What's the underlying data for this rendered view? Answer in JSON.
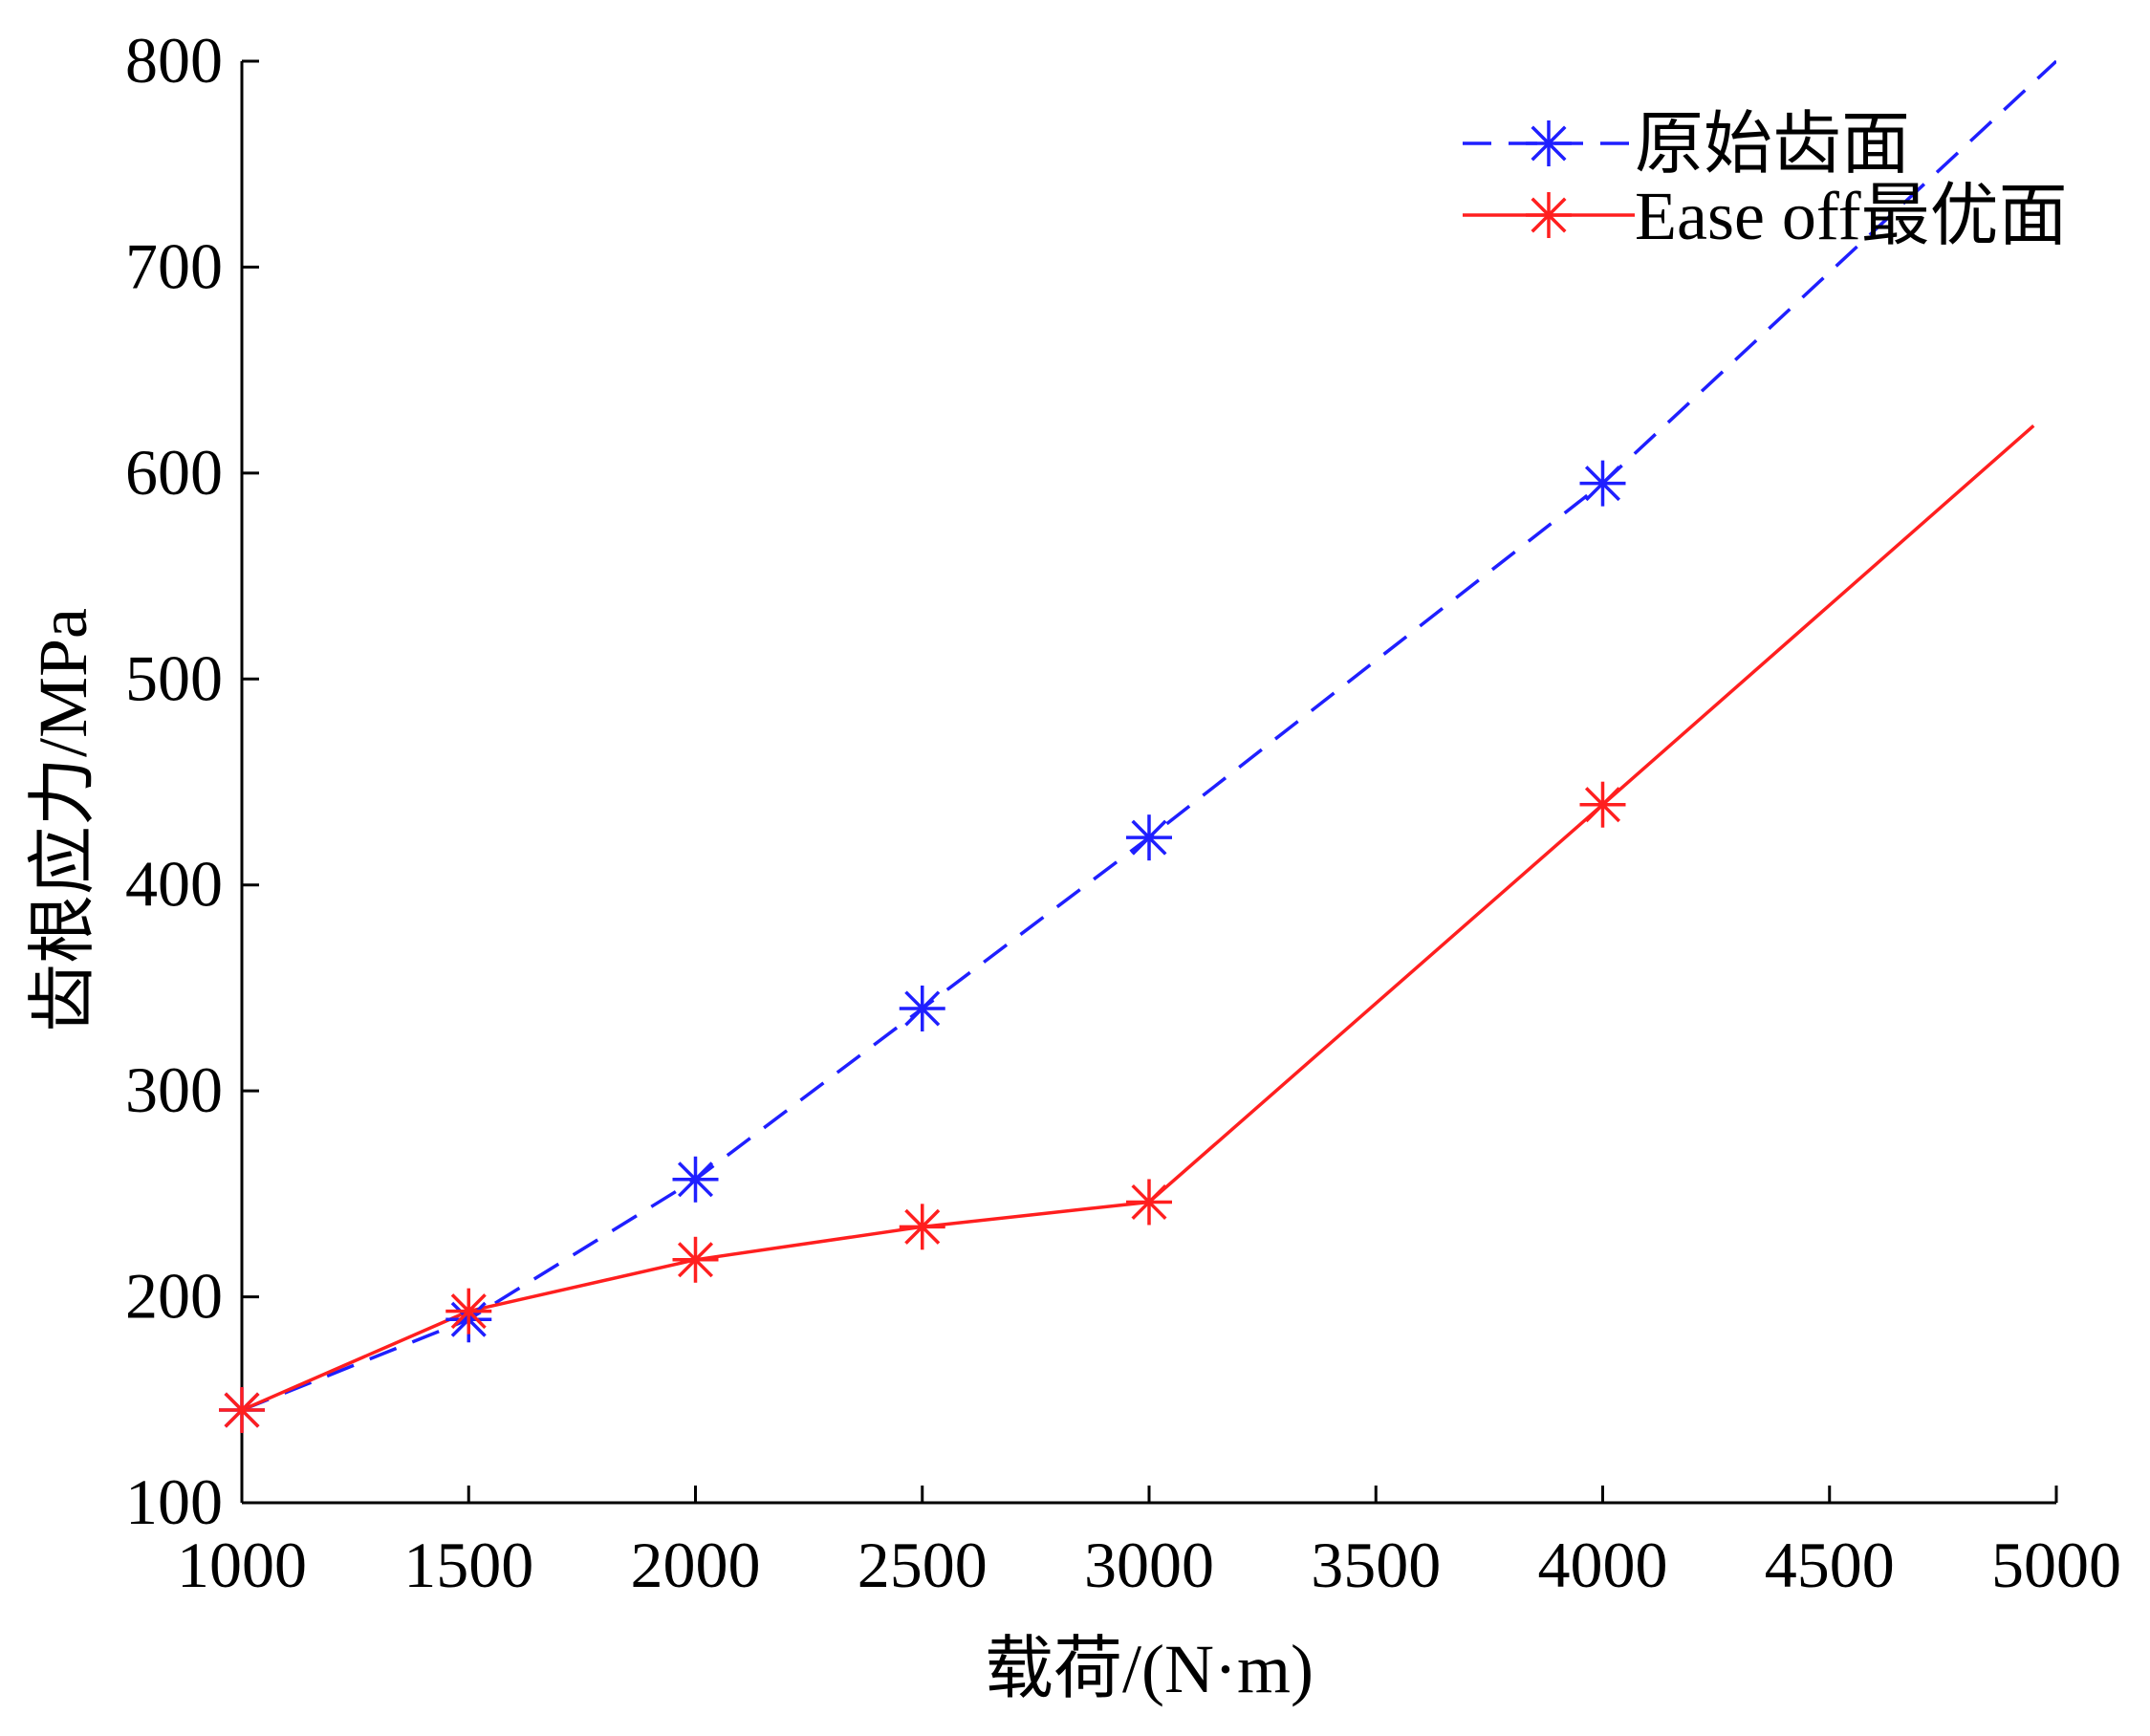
{
  "chart_data": {
    "type": "line",
    "title": "",
    "xlabel": "载荷/(N·m)",
    "ylabel": "齿根应力/MPa",
    "xlim": [
      1000,
      5000
    ],
    "ylim": [
      100,
      800
    ],
    "xticks": [
      1000,
      1500,
      2000,
      2500,
      3000,
      3500,
      4000,
      4500,
      5000
    ],
    "yticks": [
      100,
      200,
      300,
      400,
      500,
      600,
      700,
      800
    ],
    "grid": false,
    "legend_position": "top-right",
    "series": [
      {
        "name": "原始齿面",
        "color": "#1f1fff",
        "line_style": "dashed",
        "marker": "asterisk",
        "x": [
          1000,
          1500,
          2000,
          2500,
          3000,
          4000
        ],
        "y": [
          145,
          189,
          257,
          340,
          423,
          595
        ],
        "line_end": [
          5000,
          800
        ]
      },
      {
        "name": "Ease off最优面",
        "color": "#ff1f1f",
        "line_style": "solid",
        "marker": "asterisk",
        "x": [
          1000,
          1500,
          2000,
          2500,
          3000,
          4000
        ],
        "y": [
          145,
          193,
          218,
          234,
          246,
          439
        ],
        "line_end": [
          4950,
          623
        ]
      }
    ]
  }
}
